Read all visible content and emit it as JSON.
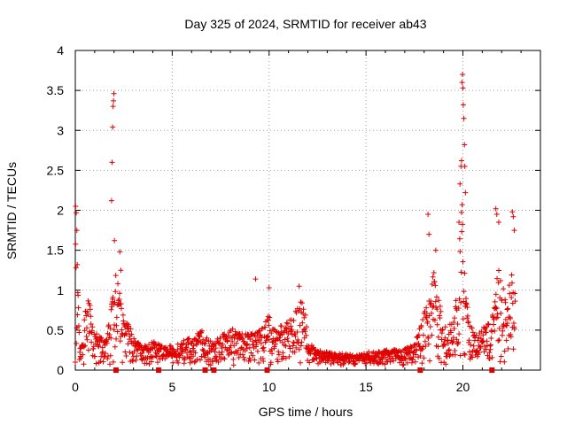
{
  "chart_data": {
    "type": "scatter",
    "title": "Day 325 of 2024, SRMTID for receiver ab43",
    "xlabel": "GPS time / hours",
    "ylabel": "SRMTID / TECUs",
    "xlim": [
      0,
      24
    ],
    "ylim": [
      0,
      4
    ],
    "xticks": [
      0,
      5,
      10,
      15,
      20
    ],
    "xtick_labels": [
      "0",
      "5",
      "10",
      "15",
      "20"
    ],
    "yticks": [
      0,
      0.5,
      1,
      1.5,
      2,
      2.5,
      3,
      3.5,
      4
    ],
    "ytick_labels": [
      "0",
      "0.5",
      "1",
      "1.5",
      "2",
      "2.5",
      "3",
      "3.5",
      "4"
    ],
    "grid": true,
    "marker": "+",
    "series_color": "#e00000",
    "envelope_hours": [
      0.0,
      0.1,
      0.2,
      0.35,
      0.5,
      0.7,
      0.9,
      1.1,
      1.3,
      1.6,
      1.85,
      2.0,
      2.15,
      2.3,
      2.5,
      2.8,
      3.1,
      3.5,
      4.0,
      4.5,
      5.0,
      5.5,
      6.0,
      6.5,
      7.0,
      7.5,
      8.0,
      8.5,
      9.0,
      9.5,
      10.0,
      10.5,
      11.0,
      11.5,
      11.8,
      12.0,
      12.5,
      13.0,
      13.5,
      14.0,
      14.5,
      15.0,
      15.5,
      16.0,
      16.5,
      17.0,
      17.5,
      17.9,
      18.2,
      18.5,
      18.8,
      19.0,
      19.3,
      19.6,
      19.8,
      19.95,
      20.1,
      20.3,
      20.6,
      20.9,
      21.2,
      21.5,
      21.7,
      21.9,
      22.1,
      22.3,
      22.5,
      22.7
    ],
    "envelope_values": [
      1.9,
      1.5,
      0.45,
      0.3,
      0.7,
      0.95,
      0.5,
      0.4,
      0.35,
      0.35,
      0.7,
      1.3,
      1.1,
      0.9,
      0.6,
      0.5,
      0.3,
      0.25,
      0.3,
      0.25,
      0.25,
      0.3,
      0.35,
      0.45,
      0.3,
      0.35,
      0.5,
      0.4,
      0.4,
      0.45,
      0.65,
      0.5,
      0.55,
      0.75,
      0.85,
      0.3,
      0.2,
      0.17,
      0.15,
      0.14,
      0.13,
      0.17,
      0.18,
      0.2,
      0.2,
      0.22,
      0.25,
      0.6,
      0.8,
      1.2,
      0.9,
      0.5,
      0.5,
      0.7,
      1.4,
      2.4,
      1.3,
      0.6,
      0.4,
      0.45,
      0.5,
      0.6,
      0.9,
      1.5,
      1.0,
      0.8,
      1.3,
      0.9
    ],
    "spikes": [
      {
        "x": 0.02,
        "y": 2.05
      },
      {
        "x": 0.05,
        "y": 1.97
      },
      {
        "x": 0.08,
        "y": 1.75
      },
      {
        "x": 0.1,
        "y": 1.32
      },
      {
        "x": 1.87,
        "y": 2.12
      },
      {
        "x": 1.9,
        "y": 2.6
      },
      {
        "x": 1.93,
        "y": 3.04
      },
      {
        "x": 1.95,
        "y": 3.3
      },
      {
        "x": 1.97,
        "y": 3.37
      },
      {
        "x": 1.99,
        "y": 3.46
      },
      {
        "x": 2.02,
        "y": 1.62
      },
      {
        "x": 2.3,
        "y": 1.48
      },
      {
        "x": 2.35,
        "y": 1.25
      },
      {
        "x": 9.3,
        "y": 1.14
      },
      {
        "x": 10.0,
        "y": 1.03
      },
      {
        "x": 11.55,
        "y": 1.05
      },
      {
        "x": 18.2,
        "y": 1.95
      },
      {
        "x": 18.25,
        "y": 1.7
      },
      {
        "x": 18.6,
        "y": 1.5
      },
      {
        "x": 19.8,
        "y": 1.85
      },
      {
        "x": 19.85,
        "y": 2.33
      },
      {
        "x": 19.9,
        "y": 2.55
      },
      {
        "x": 19.93,
        "y": 2.62
      },
      {
        "x": 19.96,
        "y": 3.6
      },
      {
        "x": 19.98,
        "y": 3.7
      },
      {
        "x": 20.0,
        "y": 3.53
      },
      {
        "x": 20.02,
        "y": 3.32
      },
      {
        "x": 20.05,
        "y": 3.15
      },
      {
        "x": 20.08,
        "y": 2.82
      },
      {
        "x": 20.1,
        "y": 2.55
      },
      {
        "x": 20.13,
        "y": 2.22
      },
      {
        "x": 21.7,
        "y": 2.02
      },
      {
        "x": 21.75,
        "y": 1.95
      },
      {
        "x": 21.85,
        "y": 1.85
      },
      {
        "x": 22.55,
        "y": 1.98
      },
      {
        "x": 22.6,
        "y": 1.92
      },
      {
        "x": 22.65,
        "y": 1.75
      }
    ],
    "gap_markers_hours": [
      2.1,
      4.3,
      6.7,
      7.15,
      9.9,
      17.8,
      21.5
    ]
  }
}
